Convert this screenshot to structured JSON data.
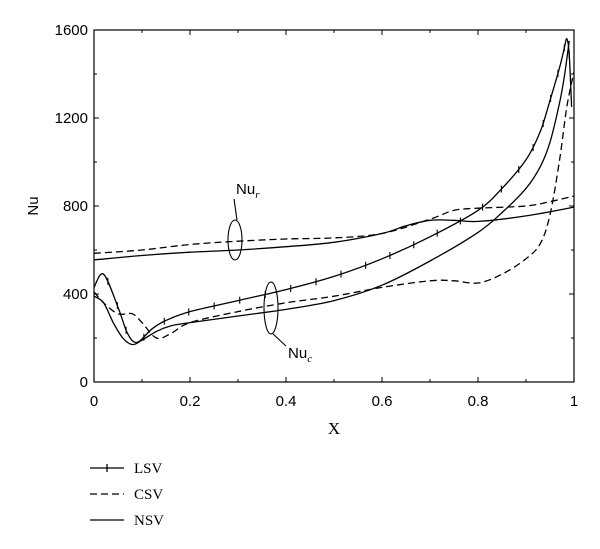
{
  "chart_data": {
    "type": "line",
    "xlabel": "X",
    "ylabel": "Nu",
    "xlim": [
      0,
      1
    ],
    "ylim": [
      0,
      1600
    ],
    "x_ticks": [
      "0",
      "0.2",
      "0.4",
      "0.6",
      "0.8",
      "1"
    ],
    "y_ticks": [
      "0",
      "400",
      "800",
      "1200",
      "1600"
    ],
    "legend_position": "bottom-left",
    "annotations": [
      {
        "text": "Nu",
        "subscript": "r"
      },
      {
        "text": "Nu",
        "subscript": "c"
      }
    ],
    "series": [
      {
        "name": "LSV",
        "group": "Nu_c",
        "style": "solid-markers",
        "x": [
          0,
          0.02,
          0.05,
          0.07,
          0.09,
          0.12,
          0.15,
          0.2,
          0.3,
          0.4,
          0.5,
          0.6,
          0.7,
          0.8,
          0.85,
          0.9,
          0.93,
          0.95,
          0.97,
          0.98,
          0.985,
          0.99,
          0.995
        ],
        "y": [
          430,
          490,
          340,
          220,
          180,
          240,
          280,
          320,
          370,
          420,
          480,
          560,
          660,
          780,
          880,
          1010,
          1140,
          1280,
          1430,
          1520,
          1560,
          1490,
          1250
        ]
      },
      {
        "name": "CSV",
        "group": "Nu_c",
        "style": "dashed",
        "x": [
          0,
          0.02,
          0.05,
          0.08,
          0.1,
          0.13,
          0.16,
          0.2,
          0.3,
          0.4,
          0.5,
          0.6,
          0.7,
          0.75,
          0.8,
          0.85,
          0.9,
          0.93,
          0.95,
          0.97,
          0.985,
          1
        ],
        "y": [
          410,
          360,
          310,
          310,
          270,
          200,
          220,
          270,
          320,
          360,
          390,
          430,
          460,
          460,
          450,
          490,
          560,
          630,
          760,
          1010,
          1250,
          1410
        ]
      },
      {
        "name": "NSV",
        "group": "Nu_c",
        "style": "solid",
        "x": [
          0,
          0.02,
          0.04,
          0.06,
          0.08,
          0.1,
          0.13,
          0.16,
          0.2,
          0.3,
          0.4,
          0.5,
          0.6,
          0.7,
          0.8,
          0.85,
          0.9,
          0.93,
          0.95,
          0.97,
          0.98,
          0.99
        ],
        "y": [
          390,
          360,
          270,
          200,
          170,
          190,
          230,
          255,
          270,
          300,
          330,
          370,
          440,
          550,
          680,
          770,
          880,
          980,
          1090,
          1270,
          1390,
          1550
        ]
      },
      {
        "name": "CSV",
        "group": "Nu_r",
        "style": "dashed",
        "x": [
          0,
          0.1,
          0.2,
          0.3,
          0.4,
          0.5,
          0.6,
          0.7,
          0.75,
          0.8,
          0.9,
          0.95,
          1
        ],
        "y": [
          585,
          600,
          625,
          640,
          650,
          655,
          675,
          740,
          780,
          790,
          800,
          820,
          845
        ]
      },
      {
        "name": "NSV",
        "group": "Nu_r",
        "style": "solid",
        "x": [
          0,
          0.1,
          0.2,
          0.3,
          0.4,
          0.5,
          0.6,
          0.65,
          0.7,
          0.75,
          0.8,
          0.9,
          1
        ],
        "y": [
          555,
          575,
          590,
          600,
          615,
          635,
          675,
          710,
          735,
          735,
          730,
          755,
          795
        ]
      }
    ]
  }
}
